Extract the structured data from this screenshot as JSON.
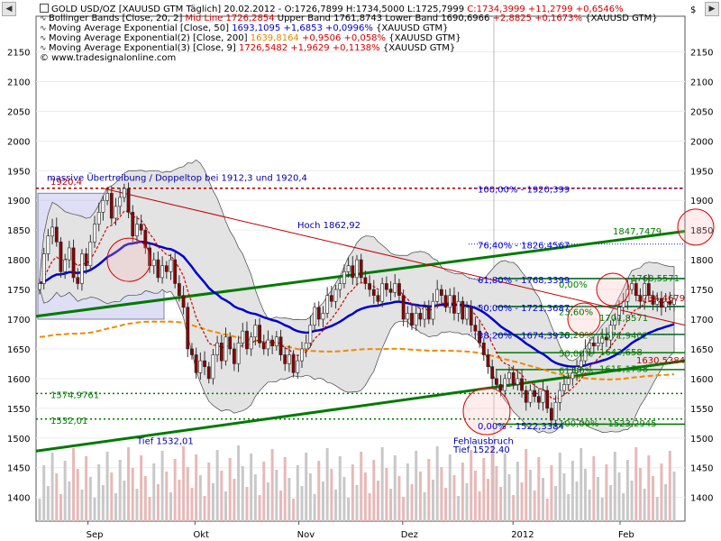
{
  "window": {
    "nav_left": "◀",
    "nav_right": "▶"
  },
  "header": {
    "symbol_line": "GOLD USD/OZ [XAUUSD GTM  Täglich] 20.02.2012 - O:1726,7899 H:1734,5000 L:1725,7999",
    "symbol_close": "C:1734,3999 +11,2799 +0,6546%",
    "bb_label": "Bollinger Bands [Close, 20, 2]",
    "bb_mid": "Mid Line 1726,2854",
    "bb_rest": "Upper Band 1761,8743 Lower Band 1690,6966",
    "bb_change": "+2,8825 +0,1673%",
    "bb_symbol": "{XAUUSD GTM}",
    "ema50_label": "Moving Average Exponential [Close, 50]",
    "ema50_value": "1693,1095 +1,6853 +0,0996%",
    "ema50_symbol": "{XAUUSD GTM}",
    "ema200_label": "Moving Average Exponential(2) [Close, 200]",
    "ema200_value": "1639,8164",
    "ema200_change": "+0,9506 +0,058%",
    "ema200_symbol": "{XAUUSD GTM}",
    "ema9_label": "Moving Average Exponential(3) [Close, 9]",
    "ema9_value": "1726,5482 +1,9629 +0,1138%",
    "ema9_symbol": "{XAUUSD GTM}",
    "copyright": "© www.tradesignalonline.com"
  },
  "colors": {
    "candle_up": "#ffffff",
    "candle_down": "#8b0000",
    "wick": "#333333",
    "bb_band": "#e3e3e3",
    "ema9": "#d40000",
    "ema50": "#0000cc",
    "ema200": "#f08a00",
    "trend_green": "#007a00",
    "fib_blue": "#0000dd",
    "resistance_red": "#c00000",
    "box_fill": "#c8c8ec",
    "circle": "#d40000"
  },
  "annotations": {
    "top_note": "massive Übertreibung / Doppeltop bei 1912,3 und 1920,4",
    "high_1920": "1920,4",
    "hoch": "Hoch 1862,92",
    "level_1574": "1574,9761",
    "level_1532": "1532,01",
    "tief_1532": "Tief 1532,01",
    "fehl_1": "Fehlausbruch",
    "fehl_2": "Tief 1522,40",
    "right_1847": "1847,7479",
    "right_1768": "1768,5571",
    "right_1734": "1734,4679",
    "right_1701": "1701,8571",
    "right_1671": "1671,9402",
    "right_1643": "1643,658",
    "right_1615": "1615,1758",
    "right_1630": "1630,5384"
  },
  "fib_labels": {
    "f100": "100,00% - 1920,399",
    "f76": "76,40% - 1826,4567",
    "f61": "61,80% - 1768,3399",
    "f50": "50,00% - 1721,3687",
    "f38": "38,20% - 1674,3976",
    "f0": "0,00% - 1522,3384",
    "f2_100": "100,00% - 1523,2945",
    "f2_0": "0,00%",
    "f2_23": "23,60%",
    "f2_38": "38,20%",
    "f2_50": "50,00%",
    "f2_61": "61,80%"
  },
  "chart_data": {
    "type": "candlestick",
    "title": "GOLD USD/OZ [XAUUSD GTM Täglich]",
    "date": "20.02.2012",
    "ohlc_last": {
      "open": 1726.7899,
      "high": 1734.5,
      "low": 1725.7999,
      "close": 1734.3999
    },
    "ylim": [
      1360,
      2210
    ],
    "y_ticks": [
      1400,
      1450,
      1500,
      1550,
      1600,
      1650,
      1700,
      1750,
      1800,
      1850,
      1900,
      1950,
      2000,
      2050,
      2100,
      2150
    ],
    "y_tick_labels": [
      "1400",
      "1450",
      "1500",
      "1550",
      "1600",
      "1650",
      "1700",
      "1750",
      "1800",
      "1850",
      "1900",
      "1950",
      "2000",
      "2050",
      "2100",
      "2150"
    ],
    "y_axis_symbol": "$",
    "x_tick_labels": [
      "Sep",
      "Okt",
      "Nov",
      "Dez",
      "2012",
      "Feb"
    ],
    "closes": [
      1760,
      1810,
      1840,
      1855,
      1830,
      1780,
      1800,
      1820,
      1770,
      1760,
      1810,
      1790,
      1830,
      1860,
      1880,
      1900,
      1912,
      1870,
      1890,
      1905,
      1920,
      1880,
      1840,
      1860,
      1850,
      1820,
      1790,
      1800,
      1770,
      1790,
      1780,
      1800,
      1760,
      1740,
      1720,
      1650,
      1640,
      1610,
      1630,
      1620,
      1600,
      1640,
      1660,
      1630,
      1670,
      1650,
      1625,
      1660,
      1680,
      1650,
      1670,
      1690,
      1660,
      1650,
      1665,
      1655,
      1670,
      1640,
      1625,
      1640,
      1610,
      1630,
      1650,
      1660,
      1690,
      1720,
      1700,
      1710,
      1740,
      1730,
      1750,
      1760,
      1780,
      1790,
      1770,
      1800,
      1770,
      1760,
      1750,
      1740,
      1730,
      1760,
      1750,
      1745,
      1760,
      1740,
      1700,
      1710,
      1690,
      1710,
      1700,
      1720,
      1700,
      1730,
      1750,
      1740,
      1720,
      1740,
      1710,
      1730,
      1700,
      1720,
      1690,
      1680,
      1660,
      1640,
      1620,
      1600,
      1590,
      1580,
      1600,
      1610,
      1590,
      1600,
      1580,
      1560,
      1580,
      1570,
      1560,
      1580,
      1550,
      1530,
      1560,
      1580,
      1590,
      1600,
      1610,
      1620,
      1630,
      1650,
      1660,
      1655,
      1660,
      1670,
      1665,
      1690,
      1700,
      1720,
      1730,
      1750,
      1760,
      1740,
      1730,
      1760,
      1740,
      1725,
      1735,
      1720,
      1730,
      1725,
      1734
    ],
    "volume_scale": [
      1390,
      1480
    ]
  }
}
